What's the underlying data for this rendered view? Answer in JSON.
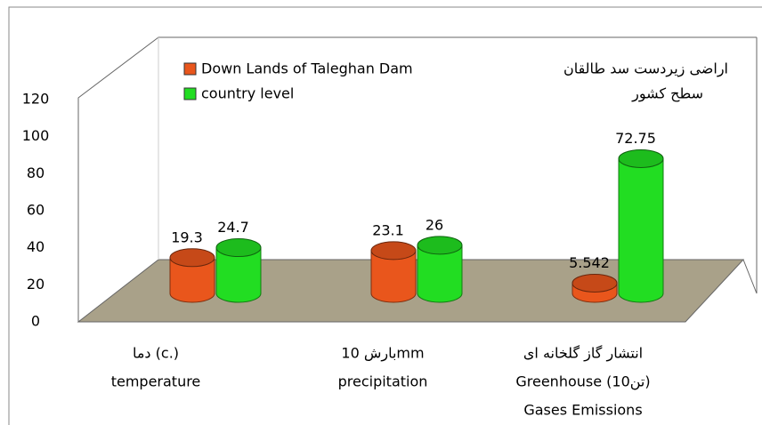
{
  "chart_data": {
    "type": "bar3d",
    "categories": [
      [
        "دما (c.)",
        "temperature"
      ],
      [
        "بارش   10mm",
        "precipitation"
      ],
      [
        "انتشار گاز گلخانه ای",
        "Greenhouse  (10تن)",
        "Gases Emissions"
      ]
    ],
    "series": [
      {
        "name": "Down Lands of Taleghan Dam",
        "name_fa": "اراضی زیردست سد طالقان",
        "color": "#e9561c",
        "values": [
          19.3,
          23.1,
          5.542
        ]
      },
      {
        "name": "country level",
        "name_fa": "سطح کشور",
        "color": "#22dd22",
        "values": [
          24.7,
          26,
          72.75
        ]
      }
    ],
    "ylim": [
      0,
      120
    ],
    "yticks": [
      0,
      20,
      40,
      60,
      80,
      100,
      120
    ],
    "grid": false,
    "legend": "top"
  }
}
